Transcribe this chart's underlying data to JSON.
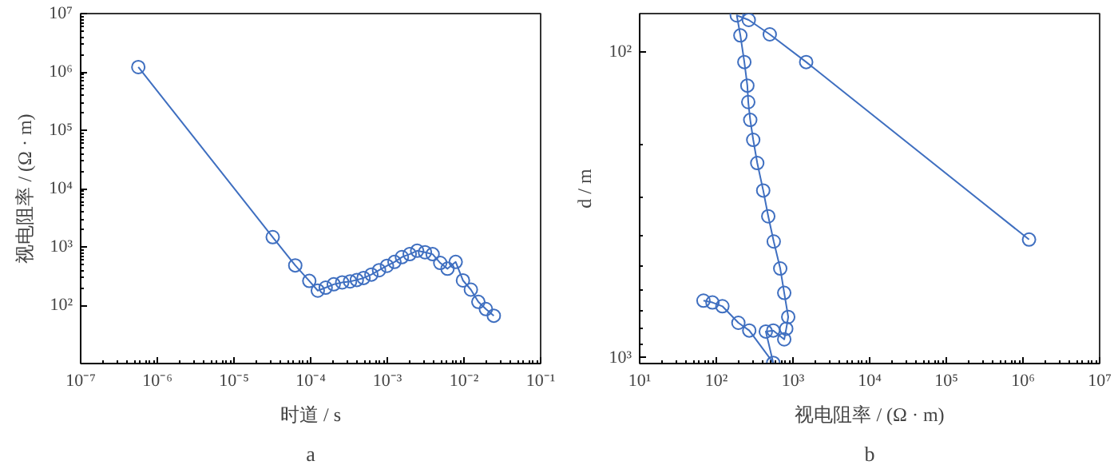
{
  "chart_data": [
    {
      "type": "line",
      "xlabel": "时道 / s",
      "ylabel": "视电阻率 / (Ω · m)",
      "annotations": [
        "a"
      ],
      "log": "xy",
      "marker": "circle",
      "line_style": "solid",
      "grid": false,
      "xlim": [
        1e-07,
        0.1
      ],
      "ylim": [
        10,
        10000000.0
      ],
      "xticks": [
        {
          "value": 1e-07,
          "label": "10⁻⁷"
        },
        {
          "value": 1e-06,
          "label": "10⁻⁶"
        },
        {
          "value": 1e-05,
          "label": "10⁻⁵"
        },
        {
          "value": 0.0001,
          "label": "10⁻⁴"
        },
        {
          "value": 0.001,
          "label": "10⁻³"
        },
        {
          "value": 0.01,
          "label": "10⁻²"
        },
        {
          "value": 0.1,
          "label": "10⁻¹"
        }
      ],
      "yticks": [
        {
          "value": 100,
          "label": "10²"
        },
        {
          "value": 1000,
          "label": "10³"
        },
        {
          "value": 10000,
          "label": "10⁴"
        },
        {
          "value": 100000,
          "label": "10⁵"
        },
        {
          "value": 1000000,
          "label": "10⁶"
        },
        {
          "value": 10000000,
          "label": "10⁷"
        }
      ],
      "series": [
        {
          "color": "#3f6fc0",
          "x": [
            5.65e-07,
            3.2e-05,
            6.3e-05,
            9.6e-05,
            0.000124,
            0.000157,
            0.0002,
            0.000258,
            0.000327,
            0.0004,
            0.00049,
            0.00062,
            0.00078,
            0.00099,
            0.00124,
            0.00155,
            0.00196,
            0.00245,
            0.0031,
            0.0039,
            0.0049,
            0.0061,
            0.0078,
            0.0097,
            0.0123,
            0.0154,
            0.0193,
            0.0245
          ],
          "values": [
            1210000,
            1470,
            482,
            261,
            178,
            200,
            228,
            246,
            256,
            271,
            293,
            335,
            398,
            473,
            552,
            668,
            750,
            858,
            810,
            750,
            531,
            422,
            552,
            266,
            185,
            114,
            86,
            66
          ]
        }
      ]
    },
    {
      "type": "line",
      "xlabel": "视电阻率 / (Ω · m)",
      "ylabel": "d / m",
      "annotations": [
        "b"
      ],
      "log": "xy",
      "marker": "circle",
      "line_style": "solid",
      "grid": false,
      "xlim": [
        10,
        10000000.0
      ],
      "ylim": [
        1045,
        75
      ],
      "xticks": [
        {
          "value": 10,
          "label": "10¹"
        },
        {
          "value": 100,
          "label": "10²"
        },
        {
          "value": 1000,
          "label": "10³"
        },
        {
          "value": 10000,
          "label": "10⁴"
        },
        {
          "value": 100000,
          "label": "10⁵"
        },
        {
          "value": 1000000,
          "label": "10⁶"
        },
        {
          "value": 10000000,
          "label": "10⁷"
        }
      ],
      "yticks": [
        {
          "value": 100,
          "label": "10²"
        },
        {
          "value": 1000,
          "label": "10³"
        }
      ],
      "series": [
        {
          "color": "#3f6fc0",
          "x": [
            1200000,
            1486,
            498,
            265,
            185,
            206,
            232,
            254,
            261,
            277,
            303,
            342,
            409,
            476,
            561,
            682,
            769,
            867,
            817,
            769,
            553,
            442,
            553,
            269,
            194,
            120,
            89,
            68
          ],
          "values": [
            411,
            108,
            87.7,
            78.7,
            76,
            88.4,
            108,
            129,
            146,
            167,
            194,
            231,
            284,
            345,
            417,
            511,
            614,
            736,
            804,
            871,
            815,
            821,
            1040,
            815,
            769,
            679,
            660,
            651
          ]
        }
      ]
    }
  ]
}
